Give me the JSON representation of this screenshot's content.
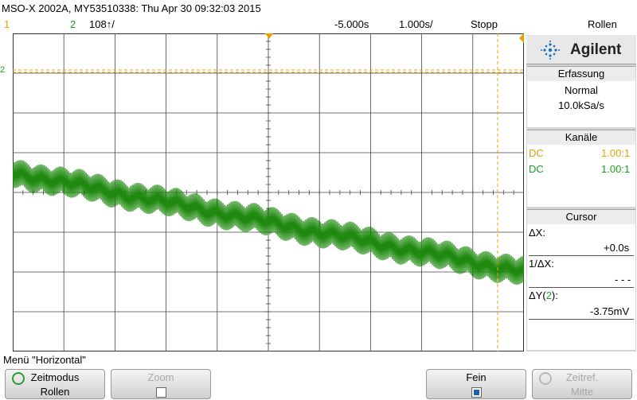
{
  "header": {
    "title": "MSO-X 2002A, MY53510338: Thu Apr 30 09:32:03 2015",
    "ch1_label": "1",
    "ch2_label": "2",
    "ch2_scale": "108↑/",
    "trigger_delay": "-5.000s",
    "timebase": "1.000s/",
    "run_state": "Stopp",
    "mode": "Rollen"
  },
  "panel": {
    "brand": "Agilent",
    "acquisition": {
      "title": "Erfassung",
      "mode": "Normal",
      "rate": "10.0kSa/s"
    },
    "channels": {
      "title": "Kanäle",
      "rows": [
        {
          "coupling": "DC",
          "probe": "1.00:1",
          "color": "#e8a000"
        },
        {
          "coupling": "DC",
          "probe": "1.00:1",
          "color": "#1aa01a"
        }
      ]
    },
    "cursor": {
      "title": "Cursor",
      "dx_label": "ΔX:",
      "dx_value": "+0.0s",
      "inv_dx_label": "1/ΔX:",
      "inv_dx_value": "- - -",
      "dy_label": "ΔY(",
      "dy_channel": "2",
      "dy_label_end": "):",
      "dy_value": "-3.75mV"
    }
  },
  "menu": {
    "title": "Menü \"Horizontal\"",
    "softkeys": [
      {
        "line1": "Zeitmodus",
        "line2": "Rollen",
        "enabled": true
      },
      {
        "line1": "Zoom",
        "line2": "",
        "enabled": false
      },
      {
        "line1": "Fein",
        "line2": "",
        "enabled": true
      },
      {
        "line1": "Zeitref.",
        "line2": "Mitte",
        "enabled": false
      }
    ]
  },
  "trace": {
    "channel": "2",
    "color": "#1f8a0f",
    "start_div": 0.5,
    "end_div": -2.0
  },
  "colors": {
    "ch1": "#e8a000",
    "ch2": "#1aa01a"
  }
}
